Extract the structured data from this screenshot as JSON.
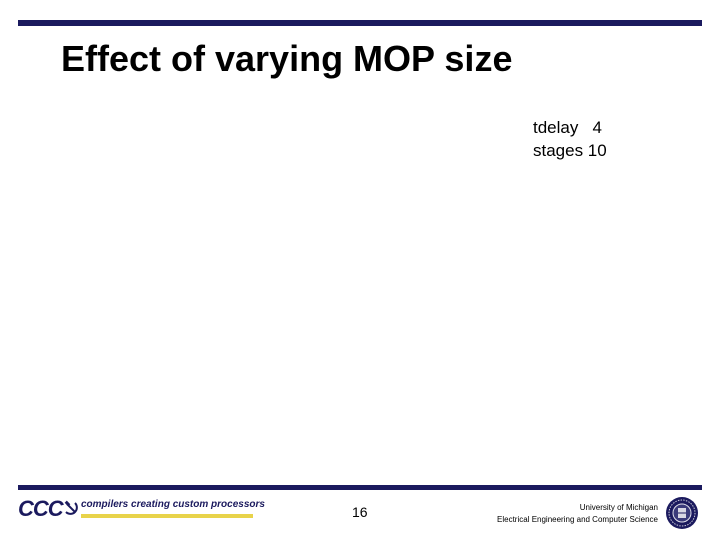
{
  "slide": {
    "title": "Effect of varying MOP size",
    "params": [
      {
        "text": "tdelay   4"
      },
      {
        "text": "stages 10"
      }
    ]
  },
  "footer": {
    "logo_mark": "CCC",
    "logo_tagline": "compilers creating custom processors",
    "page_number": "16",
    "institution_line1": "University of Michigan",
    "institution_line2": "Electrical Engineering and Computer Science"
  },
  "colors": {
    "rule": "#1b1a5e",
    "logo_underline": "#e8d34a"
  },
  "icons": {
    "logo_glyph": "hammer-sickle-icon",
    "seal": "university-seal-icon"
  }
}
